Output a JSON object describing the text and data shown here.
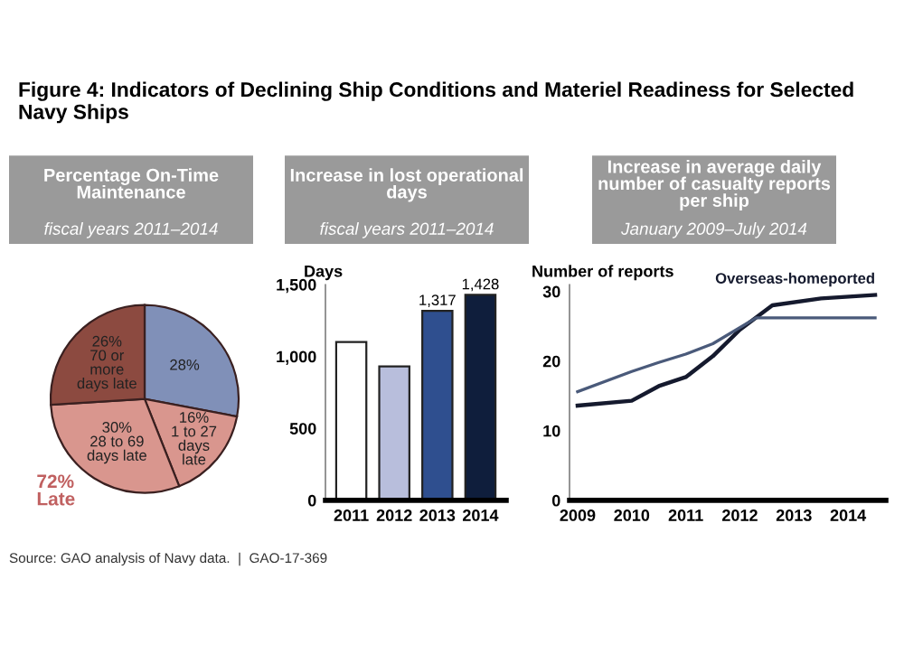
{
  "chart_data": [
    {
      "type": "pie",
      "title": "Percentage On-Time Maintenance",
      "subtitle": "fiscal years 2011–2014",
      "categories": [
        null,
        "1 to 27 days late",
        "28 to 69 days late",
        "70 or more days late"
      ],
      "values": [
        28,
        16,
        30,
        26
      ],
      "value_labels": [
        "28%",
        "16%",
        "30%",
        "26%"
      ],
      "colors": [
        "#8090b8",
        "#d9968e",
        "#d9968e",
        "#8c4a40"
      ],
      "annotations": [
        "Figure 4: Indicators of Declining Ship Conditions and Materiel Readiness for Selected Navy Ships",
        "72%\nLate",
        "Source: GAO analysis of Navy data.  |  GAO-17-369"
      ]
    },
    {
      "type": "bar",
      "title": "Increase in lost operational days",
      "subtitle": "fiscal years 2011–2014",
      "ylabel": "Days",
      "categories": [
        "2011",
        "2012",
        "2013",
        "2014"
      ],
      "values": [
        1100,
        930,
        1317,
        1428
      ],
      "value_labels": [
        null,
        null,
        "1,317",
        "1,428"
      ],
      "colors": [
        "#ffffff",
        "#b8bedc",
        "#2f4f8f",
        "#0f1e3c"
      ],
      "ylim": [
        0,
        1500
      ],
      "yticks": [
        0,
        500,
        {
          "value": 1000,
          "label": "1,000"
        },
        {
          "value": 1500,
          "label": "1,500"
        }
      ],
      "grid": false
    },
    {
      "type": "line",
      "title": "Increase in average daily number of casualty reports per ship",
      "subtitle": "January 2009–July 2014",
      "ylabel": "Number of reports",
      "series": [
        {
          "name": "Overseas-homeported",
          "color": "#151a2e",
          "x": [
            2009,
            2010,
            2010.5,
            2011,
            2011.5,
            2012,
            2012.6,
            2013.5,
            2014.5
          ],
          "values": [
            13.6,
            14.3,
            16.4,
            17.7,
            20.7,
            24.5,
            28,
            29,
            29.5
          ]
        },
        {
          "color": "#4a5a7a",
          "x": [
            2009,
            2010,
            2010.5,
            2011,
            2011.5,
            2012.3,
            2013,
            2014.5
          ],
          "values": [
            15.6,
            18.5,
            19.8,
            21,
            22.5,
            26.2,
            26.2,
            26.2
          ]
        }
      ],
      "xlim": [
        2008.85,
        2014.7
      ],
      "xticks": [
        2009,
        2010,
        2011,
        2012,
        2013,
        2014
      ],
      "ylim": [
        0,
        31
      ],
      "yticks": [
        0,
        10,
        20,
        30
      ],
      "grid": false,
      "legend": false,
      "marker": "none",
      "line_style": "solid"
    }
  ]
}
